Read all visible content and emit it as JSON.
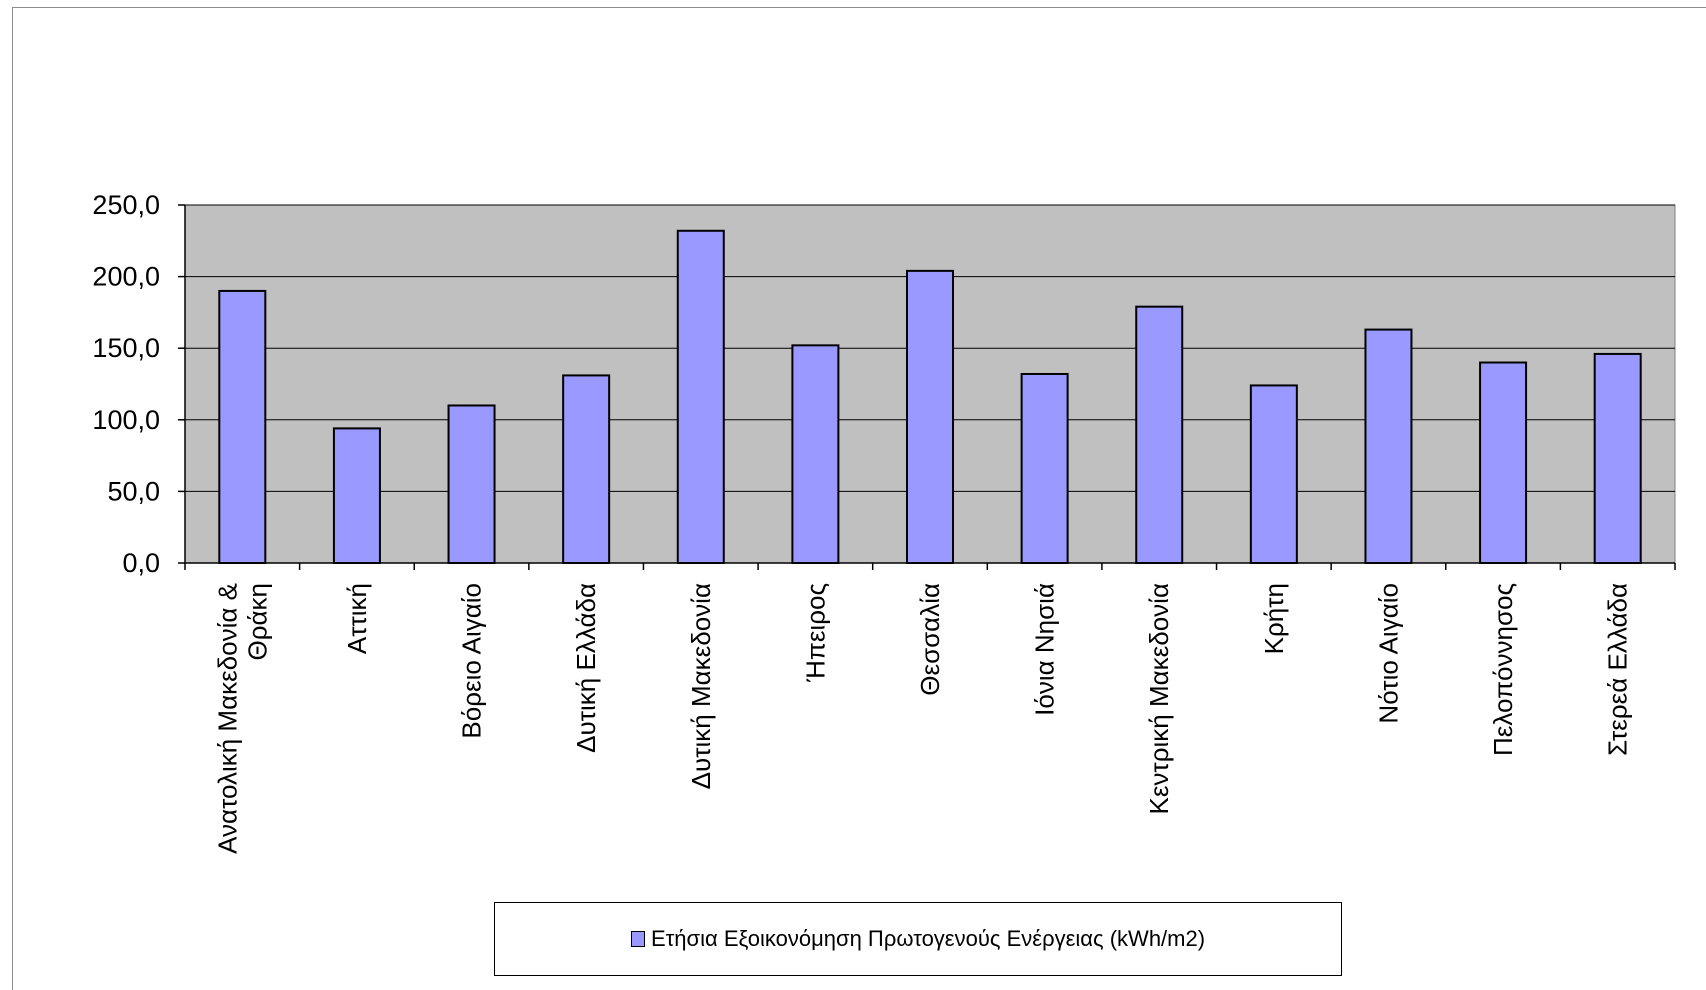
{
  "chart_data": {
    "type": "bar",
    "categories": [
      "Ανατολική Μακεδονία & Θράκη",
      "Αττική",
      "Βόρειο Αιγαίο",
      "Δυτική Ελλάδα",
      "Δυτική Μακεδονία",
      "Ήπειρος",
      "Θεσσαλία",
      "Ιόνια Νησιά",
      "Κεντρική Μακεδονία",
      "Κρήτη",
      "Νότιο Αιγαίο",
      "Πελοπόννησος",
      "Στερεά Ελλάδα"
    ],
    "category_lines": [
      [
        "Ανατολική Μακεδονία &",
        "Θράκη"
      ],
      [
        "Αττική"
      ],
      [
        "Βόρειο Αιγαίο"
      ],
      [
        "Δυτική Ελλάδα"
      ],
      [
        "Δυτική Μακεδονία"
      ],
      [
        "Ήπειρος"
      ],
      [
        "Θεσσαλία"
      ],
      [
        "Ιόνια Νησιά"
      ],
      [
        "Κεντρική Μακεδονία"
      ],
      [
        "Κρήτη"
      ],
      [
        "Νότιο Αιγαίο"
      ],
      [
        "Πελοπόννησος"
      ],
      [
        "Στερεά Ελλάδα"
      ]
    ],
    "series": [
      {
        "name": "Ετήσια Εξοικονόμηση Πρωτογενούς Ενέργειας (kWh/m2)",
        "values": [
          190.0,
          94.0,
          110.0,
          131.0,
          232.0,
          152.0,
          204.0,
          132.0,
          179.0,
          124.0,
          163.0,
          140.0,
          146.0
        ]
      }
    ],
    "y_ticks": [
      "0,0",
      "50,0",
      "100,0",
      "150,0",
      "200,0",
      "250,0"
    ],
    "ylim": [
      0,
      250
    ],
    "grid": true,
    "legend_position": "bottom",
    "title": "",
    "xlabel": "",
    "ylabel": "",
    "colors": {
      "bar": "#9999ff",
      "plot_background": "#c0c0c0",
      "gridline": "#000000"
    }
  }
}
